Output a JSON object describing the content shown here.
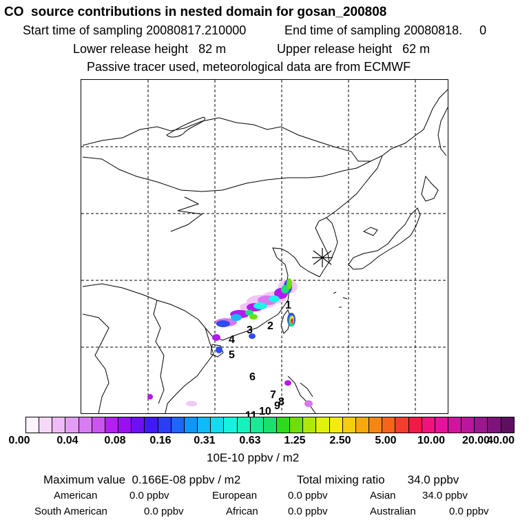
{
  "header": {
    "title": "CO  source contributions in nested domain for gosan_200808",
    "start_label": "Start time of sampling 20080817.210000",
    "end_label": "End time of sampling 20080818.     0",
    "lower_label": "Lower release height   82 m",
    "upper_label": "Upper release height   62 m",
    "tracer_note": "Passive tracer used, meteorological data are from ECMWF"
  },
  "map": {
    "site_marker": "star-marker",
    "site_labels": [
      "1",
      "2",
      "3",
      "4",
      "5",
      "6",
      "7",
      "8",
      "9",
      "10",
      "11"
    ],
    "plume_colors": [
      "#f2c6f7",
      "#d977f0",
      "#b419f2",
      "#2d4cf2",
      "#19b9f5",
      "#1cf4e5",
      "#19e07a",
      "#6cdf0c",
      "#f3e30b",
      "#f24e1c",
      "#e8148c"
    ]
  },
  "colorbar": {
    "colors": [
      "#fdf3fe",
      "#f7d8fb",
      "#eebaf8",
      "#e49df5",
      "#d97cf1",
      "#c955ee",
      "#b31ff1",
      "#9a0ff2",
      "#6d10f3",
      "#4119f4",
      "#2a3ef5",
      "#1d66f6",
      "#1394f7",
      "#0fbaf6",
      "#13dcf1",
      "#16f2de",
      "#17f1bc",
      "#18ea96",
      "#19e06e",
      "#2fd91b",
      "#6ede0c",
      "#aee80b",
      "#dff10d",
      "#f6ea10",
      "#f7cd10",
      "#f6a90f",
      "#f58710",
      "#f4641a",
      "#f23e2d",
      "#ef1a47",
      "#f0127d",
      "#e5139b",
      "#cf159f",
      "#b9179c",
      "#9c168f",
      "#7f137c",
      "#5f0f62"
    ],
    "tick_labels": [
      "0.00",
      "0.04",
      "0.08",
      "0.16",
      "0.31",
      "0.63",
      "1.25",
      "2.50",
      "5.00",
      "10.00",
      "20.00",
      "40.00"
    ],
    "units": "10E-10 ppbv / m2"
  },
  "stats": {
    "max_value": "Maximum value  0.166E-08 ppbv / m2",
    "total_mixing": "Total mixing ratio       34.0 ppbv",
    "rows": [
      [
        {
          "name": "American",
          "value": "0.0 ppbv"
        },
        {
          "name": "European",
          "value": "0.0 ppbv"
        },
        {
          "name": "Asian",
          "value": "34.0 ppbv"
        }
      ],
      [
        {
          "name": "South American",
          "value": "0.0 ppbv"
        },
        {
          "name": "African",
          "value": "0.0 ppbv"
        },
        {
          "name": "Australian",
          "value": "0.0 ppbv"
        }
      ]
    ]
  }
}
